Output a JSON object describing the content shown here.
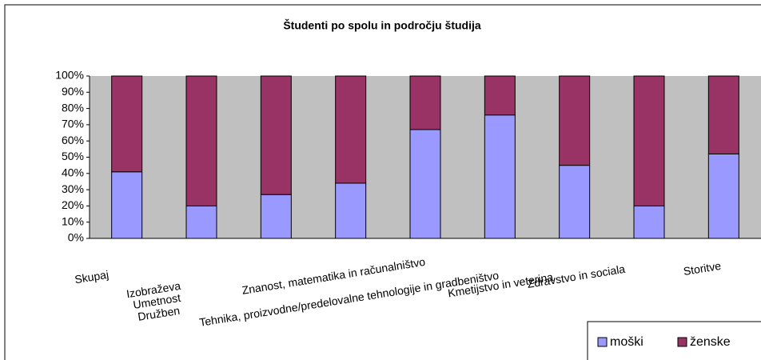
{
  "chart_data": {
    "type": "stacked-bar-100",
    "title": "Študenti po spolu in področju študija",
    "categories": [
      "Skupaj",
      "Izobraževa",
      "Umetnost",
      "Družben",
      "Znanost, matematika in računalništvo",
      "Tehnika, proizvodne/predelovalne tehnologije in gradbeništvo",
      "Kmetijstvo in veterina",
      "Zdravstvo in sociala",
      "Storitve"
    ],
    "series": [
      {
        "name": "moški",
        "color": "#9999ff",
        "values": [
          41,
          20,
          27,
          34,
          67,
          76,
          45,
          20,
          52
        ]
      },
      {
        "name": "ženske",
        "color": "#993366",
        "values": [
          59,
          80,
          73,
          66,
          33,
          24,
          55,
          80,
          48
        ]
      }
    ],
    "ylim": [
      0,
      100
    ],
    "yticks": [
      {
        "value": 0,
        "label": "0%"
      },
      {
        "value": 10,
        "label": "10%"
      },
      {
        "value": 20,
        "label": "20%"
      },
      {
        "value": 30,
        "label": "30%"
      },
      {
        "value": 40,
        "label": "40%"
      },
      {
        "value": 50,
        "label": "50%"
      },
      {
        "value": 60,
        "label": "60%"
      },
      {
        "value": 70,
        "label": "70%"
      },
      {
        "value": 80,
        "label": "80%"
      },
      {
        "value": 90,
        "label": "90%"
      },
      {
        "value": 100,
        "label": "100%"
      }
    ],
    "legend": "bottom-right"
  }
}
